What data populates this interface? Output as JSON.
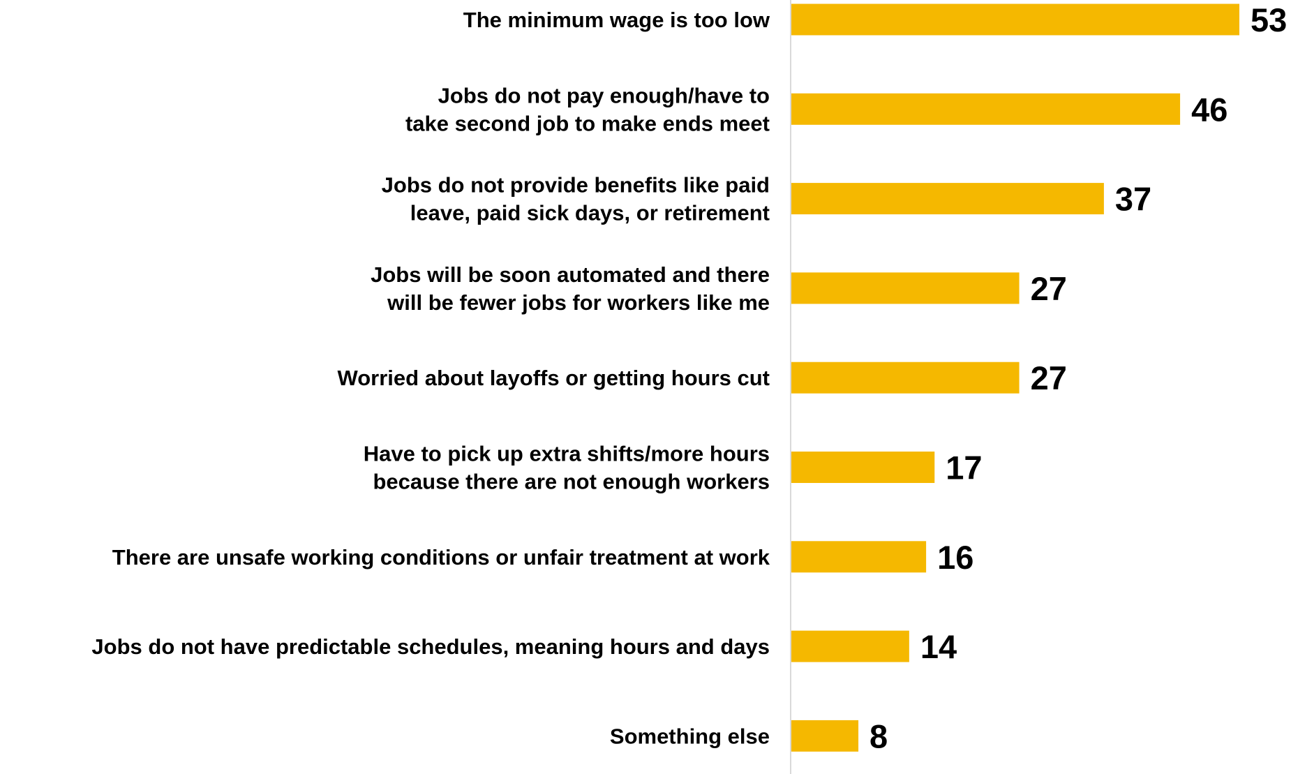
{
  "chart_data": {
    "type": "bar",
    "orientation": "horizontal",
    "categories": [
      [
        "The minimum wage is too low"
      ],
      [
        "Jobs do not pay enough/have to",
        "take second job to make ends meet"
      ],
      [
        "Jobs do not provide benefits like paid",
        "leave, paid sick days, or retirement"
      ],
      [
        "Jobs will be soon automated and there",
        "will be fewer jobs for workers like me"
      ],
      [
        "Worried about layoffs or getting hours cut"
      ],
      [
        "Have to pick up extra shifts/more hours",
        "because there are not enough workers"
      ],
      [
        "There are unsafe working conditions or unfair treatment at work"
      ],
      [
        "Jobs do not have predictable schedules, meaning hours and days"
      ],
      [
        "Something else"
      ]
    ],
    "values": [
      53,
      46,
      37,
      27,
      27,
      17,
      16,
      14,
      8
    ],
    "value_labels": [
      "53",
      "46",
      "37",
      "27",
      "27",
      "17",
      "16",
      "14",
      "8"
    ],
    "xlim": [
      0,
      53
    ],
    "bar_color": "#F5B800",
    "axis_color": "#D9D9D9",
    "grid": false
  }
}
